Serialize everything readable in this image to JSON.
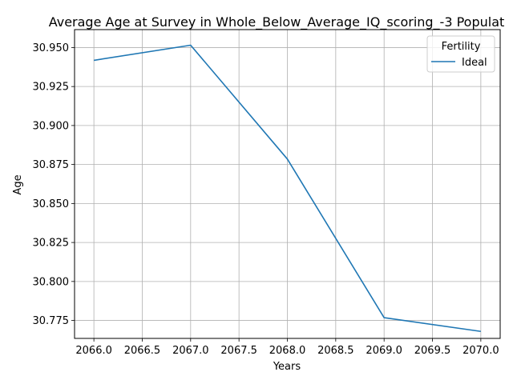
{
  "chart_data": {
    "type": "line",
    "title": "Average Age at Survey in Whole_Below_Average_IQ_scoring_-3 Populat",
    "xlabel": "Years",
    "ylabel": "Age",
    "x": [
      2066,
      2067,
      2068,
      2069,
      2070
    ],
    "series": [
      {
        "name": "Ideal",
        "color": "#1f77b4",
        "values": [
          30.9418,
          30.9515,
          30.8785,
          30.7768,
          30.768
        ]
      }
    ],
    "xlim": [
      2065.8,
      2070.2
    ],
    "ylim": [
      30.7635,
      30.9615
    ],
    "x_ticks": [
      "2066.0",
      "2066.5",
      "2067.0",
      "2067.5",
      "2068.0",
      "2068.5",
      "2069.0",
      "2069.5",
      "2070.0"
    ],
    "y_ticks": [
      "30.775",
      "30.800",
      "30.825",
      "30.850",
      "30.875",
      "30.900",
      "30.925",
      "30.950"
    ],
    "grid": true,
    "legend": {
      "title": "Fertility",
      "placement": "top-right"
    }
  }
}
